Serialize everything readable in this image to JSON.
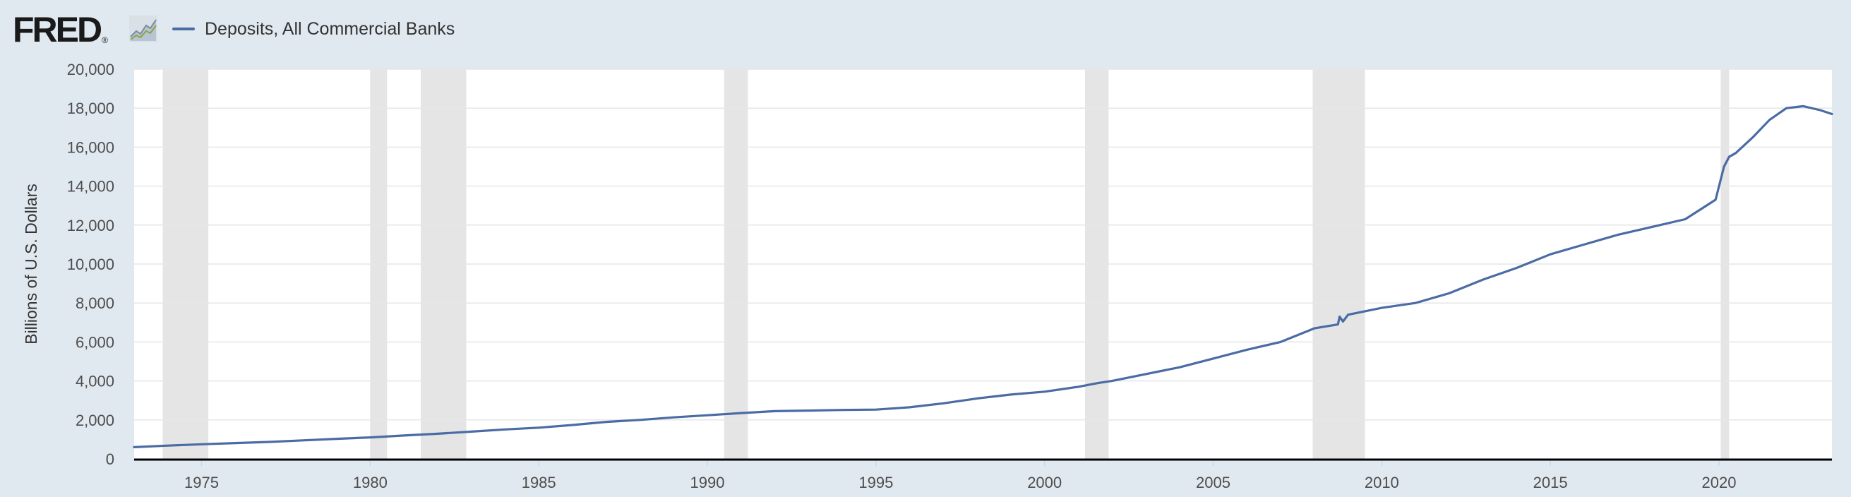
{
  "header": {
    "logo_text": "FRED",
    "logo_registered": "®",
    "logo_icon": "line-chart-icon"
  },
  "legend": {
    "label": "Deposits, All Commercial Banks",
    "color": "#4a6ba4"
  },
  "colors": {
    "background": "#e1e9f0",
    "plot_background": "#ffffff",
    "gridline": "#e6e6e6",
    "recession_shade": "#e5e5e5",
    "axis_line": "#000000",
    "line": "#4a6ba4",
    "tick_label": "#4d4d4d"
  },
  "chart_data": {
    "type": "line",
    "title": "",
    "xlabel": "",
    "ylabel": "Billions of U.S. Dollars",
    "xlim": [
      1973.0,
      2023.35
    ],
    "ylim": [
      0,
      20000
    ],
    "x_ticks": [
      1975,
      1980,
      1985,
      1990,
      1995,
      2000,
      2005,
      2010,
      2015,
      2020
    ],
    "y_ticks": [
      0,
      2000,
      4000,
      6000,
      8000,
      10000,
      12000,
      14000,
      16000,
      18000,
      20000
    ],
    "y_tick_labels": [
      "0",
      "2,000",
      "4,000",
      "6,000",
      "8,000",
      "10,000",
      "12,000",
      "14,000",
      "16,000",
      "18,000",
      "20,000"
    ],
    "grid": "horizontal",
    "legend_position": "top-left",
    "recessions": [
      [
        1973.85,
        1975.2
      ],
      [
        1980.0,
        1980.5
      ],
      [
        1981.5,
        1982.85
      ],
      [
        1990.5,
        1991.2
      ],
      [
        2001.2,
        2001.9
      ],
      [
        2007.95,
        2009.5
      ],
      [
        2020.05,
        2020.3
      ]
    ],
    "series": [
      {
        "name": "Deposits, All Commercial Banks",
        "x": [
          1973.0,
          1974.0,
          1975.0,
          1976.0,
          1977.0,
          1978.0,
          1979.0,
          1980.0,
          1981.0,
          1982.0,
          1983.0,
          1984.0,
          1985.0,
          1986.0,
          1987.0,
          1988.0,
          1989.0,
          1990.0,
          1991.0,
          1992.0,
          1993.0,
          1994.0,
          1995.0,
          1996.0,
          1997.0,
          1998.0,
          1999.0,
          2000.0,
          2001.0,
          2001.6,
          2002.0,
          2003.0,
          2004.0,
          2005.0,
          2006.0,
          2007.0,
          2008.0,
          2008.7,
          2008.75,
          2008.85,
          2009.0,
          2010.0,
          2011.0,
          2012.0,
          2013.0,
          2014.0,
          2015.0,
          2016.0,
          2017.0,
          2018.0,
          2019.0,
          2019.9,
          2020.15,
          2020.3,
          2020.5,
          2021.0,
          2021.5,
          2022.0,
          2022.5,
          2023.0,
          2023.35
        ],
        "values": [
          600,
          680,
          750,
          810,
          870,
          950,
          1030,
          1100,
          1200,
          1290,
          1400,
          1510,
          1600,
          1740,
          1900,
          2000,
          2130,
          2240,
          2350,
          2450,
          2480,
          2510,
          2530,
          2650,
          2850,
          3100,
          3300,
          3450,
          3700,
          3900,
          4000,
          4350,
          4700,
          5150,
          5600,
          6000,
          6700,
          6900,
          7300,
          7050,
          7400,
          7750,
          8000,
          8500,
          9200,
          9800,
          10500,
          11000,
          11500,
          11900,
          12300,
          13300,
          15000,
          15500,
          15700,
          16500,
          17400,
          18000,
          18100,
          17900,
          17700
        ]
      }
    ]
  }
}
